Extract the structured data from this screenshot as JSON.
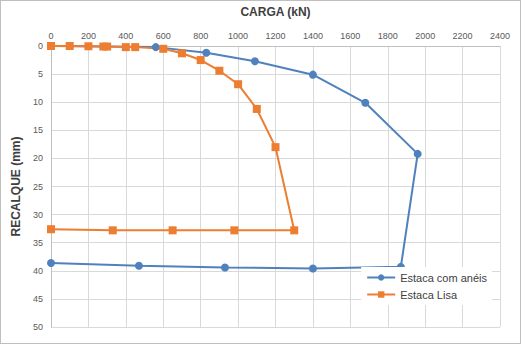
{
  "chart_data": {
    "type": "line",
    "x_label": "CARGA (kN)",
    "y_label": "RECALQUE (mm)",
    "xlim": [
      0,
      2400
    ],
    "xticks": [
      0,
      200,
      400,
      600,
      800,
      1000,
      1200,
      1400,
      1600,
      1800,
      2000,
      2200,
      2400
    ],
    "ylim": [
      0,
      50
    ],
    "yticks": [
      0,
      5,
      10,
      15,
      20,
      25,
      30,
      35,
      40,
      45,
      50
    ],
    "grid": true,
    "legend": "lower right",
    "series": [
      {
        "name": "Estaca com anéis",
        "color": "#4f81bd",
        "marker": "circle",
        "line_style": "solid",
        "x": [
          0,
          560,
          830,
          1090,
          1400,
          1680,
          1960,
          1870,
          1400,
          930,
          470,
          0
        ],
        "values": [
          0,
          0.2,
          1.2,
          2.7,
          5.1,
          10.1,
          19.2,
          39.3,
          39.6,
          39.4,
          39.1,
          38.6
        ]
      },
      {
        "name": "Estaca Lisa",
        "color": "#ed7d31",
        "marker": "square",
        "line_style": "solid",
        "x": [
          0,
          100,
          200,
          280,
          300,
          400,
          450,
          600,
          700,
          800,
          900,
          1000,
          1100,
          1200,
          1300,
          980,
          650,
          330,
          0
        ],
        "values": [
          0,
          0,
          0.05,
          0.1,
          0.1,
          0.2,
          0.2,
          0.5,
          1.3,
          2.5,
          4.4,
          6.8,
          11.2,
          18,
          32.8,
          32.8,
          32.8,
          32.8,
          32.6
        ]
      }
    ]
  }
}
